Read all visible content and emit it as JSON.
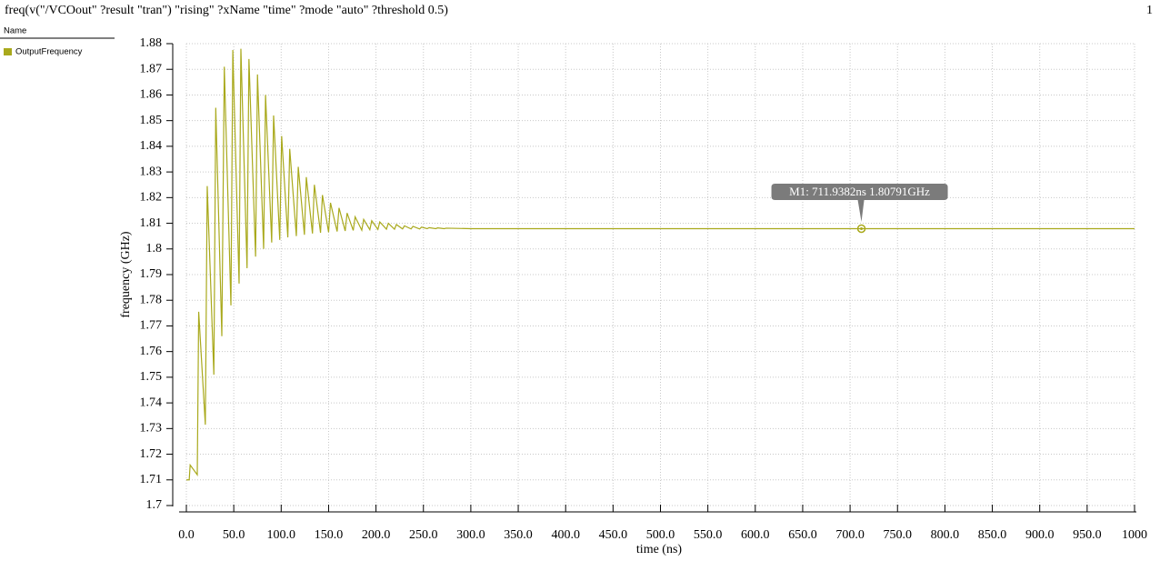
{
  "chart_data": {
    "type": "line",
    "title": "freq(v(\"/VCOout\" ?result \"tran\") \"rising\" ?xName \"time\" ?mode \"auto\" ?threshold 0.5)",
    "page_number": "1",
    "legend_header": "Name",
    "xlabel": "time (ns)",
    "ylabel": "frequency (GHz)",
    "grid": true,
    "xlim": [
      0,
      1000
    ],
    "ylim": [
      1.7,
      1.88
    ],
    "xticks": [
      {
        "value": 0,
        "label": "0.0"
      },
      {
        "value": 50,
        "label": "50.0"
      },
      {
        "value": 100,
        "label": "100.0"
      },
      {
        "value": 150,
        "label": "150.0"
      },
      {
        "value": 200,
        "label": "200.0"
      },
      {
        "value": 250,
        "label": "250.0"
      },
      {
        "value": 300,
        "label": "300.0"
      },
      {
        "value": 350,
        "label": "350.0"
      },
      {
        "value": 400,
        "label": "400.0"
      },
      {
        "value": 450,
        "label": "450.0"
      },
      {
        "value": 500,
        "label": "500.0"
      },
      {
        "value": 550,
        "label": "550.0"
      },
      {
        "value": 600,
        "label": "600.0"
      },
      {
        "value": 650,
        "label": "650.0"
      },
      {
        "value": 700,
        "label": "700.0"
      },
      {
        "value": 750,
        "label": "750.0"
      },
      {
        "value": 800,
        "label": "800.0"
      },
      {
        "value": 850,
        "label": "850.0"
      },
      {
        "value": 900,
        "label": "900.0"
      },
      {
        "value": 950,
        "label": "950.0"
      },
      1000
    ],
    "yticks": [
      1.7,
      1.71,
      1.72,
      1.73,
      1.74,
      1.75,
      1.76,
      1.77,
      1.78,
      1.79,
      1.8,
      1.81,
      1.82,
      1.83,
      1.84,
      1.85,
      1.86,
      1.87,
      1.88
    ],
    "x": [
      0,
      3,
      4,
      11.5,
      13,
      20,
      22,
      29,
      31,
      37.4,
      40,
      47,
      49,
      55.6,
      57.5,
      64,
      66,
      73,
      75,
      81.5,
      83.5,
      90,
      92,
      98.5,
      100.5,
      107,
      109,
      116,
      118,
      124.5,
      126.5,
      133,
      135,
      141.5,
      143.5,
      150,
      152,
      159,
      161,
      167.5,
      169.5,
      176,
      178,
      185,
      187,
      193.5,
      195.5,
      202,
      204,
      211,
      213,
      219.5,
      221.5,
      228,
      230,
      237,
      239,
      246,
      248,
      254,
      256,
      263,
      265,
      272,
      274,
      300,
      1000
    ],
    "series": [
      {
        "name": "OutputFrequency",
        "color": "#a9a91c",
        "values": [
          1.71,
          1.71,
          1.7158,
          1.712,
          1.7755,
          1.7315,
          1.8245,
          1.751,
          1.855,
          1.766,
          1.871,
          1.778,
          1.8775,
          1.7865,
          1.878,
          1.7925,
          1.874,
          1.797,
          1.868,
          1.8,
          1.86,
          1.8025,
          1.852,
          1.8035,
          1.844,
          1.8045,
          1.839,
          1.805,
          1.832,
          1.8055,
          1.828,
          1.806,
          1.825,
          1.8063,
          1.821,
          1.8065,
          1.818,
          1.8068,
          1.816,
          1.807,
          1.814,
          1.8072,
          1.8125,
          1.8073,
          1.8115,
          1.8075,
          1.811,
          1.8076,
          1.8105,
          1.8077,
          1.81,
          1.8077,
          1.8095,
          1.8078,
          1.809,
          1.8078,
          1.8088,
          1.8078,
          1.8085,
          1.8079,
          1.8083,
          1.8079,
          1.8082,
          1.8079,
          1.8081,
          1.8079,
          1.8079
        ]
      }
    ],
    "marker": {
      "x": 711.9382,
      "y": 1.80791,
      "label": "M1: 711.9382ns 1.80791GHz"
    }
  }
}
